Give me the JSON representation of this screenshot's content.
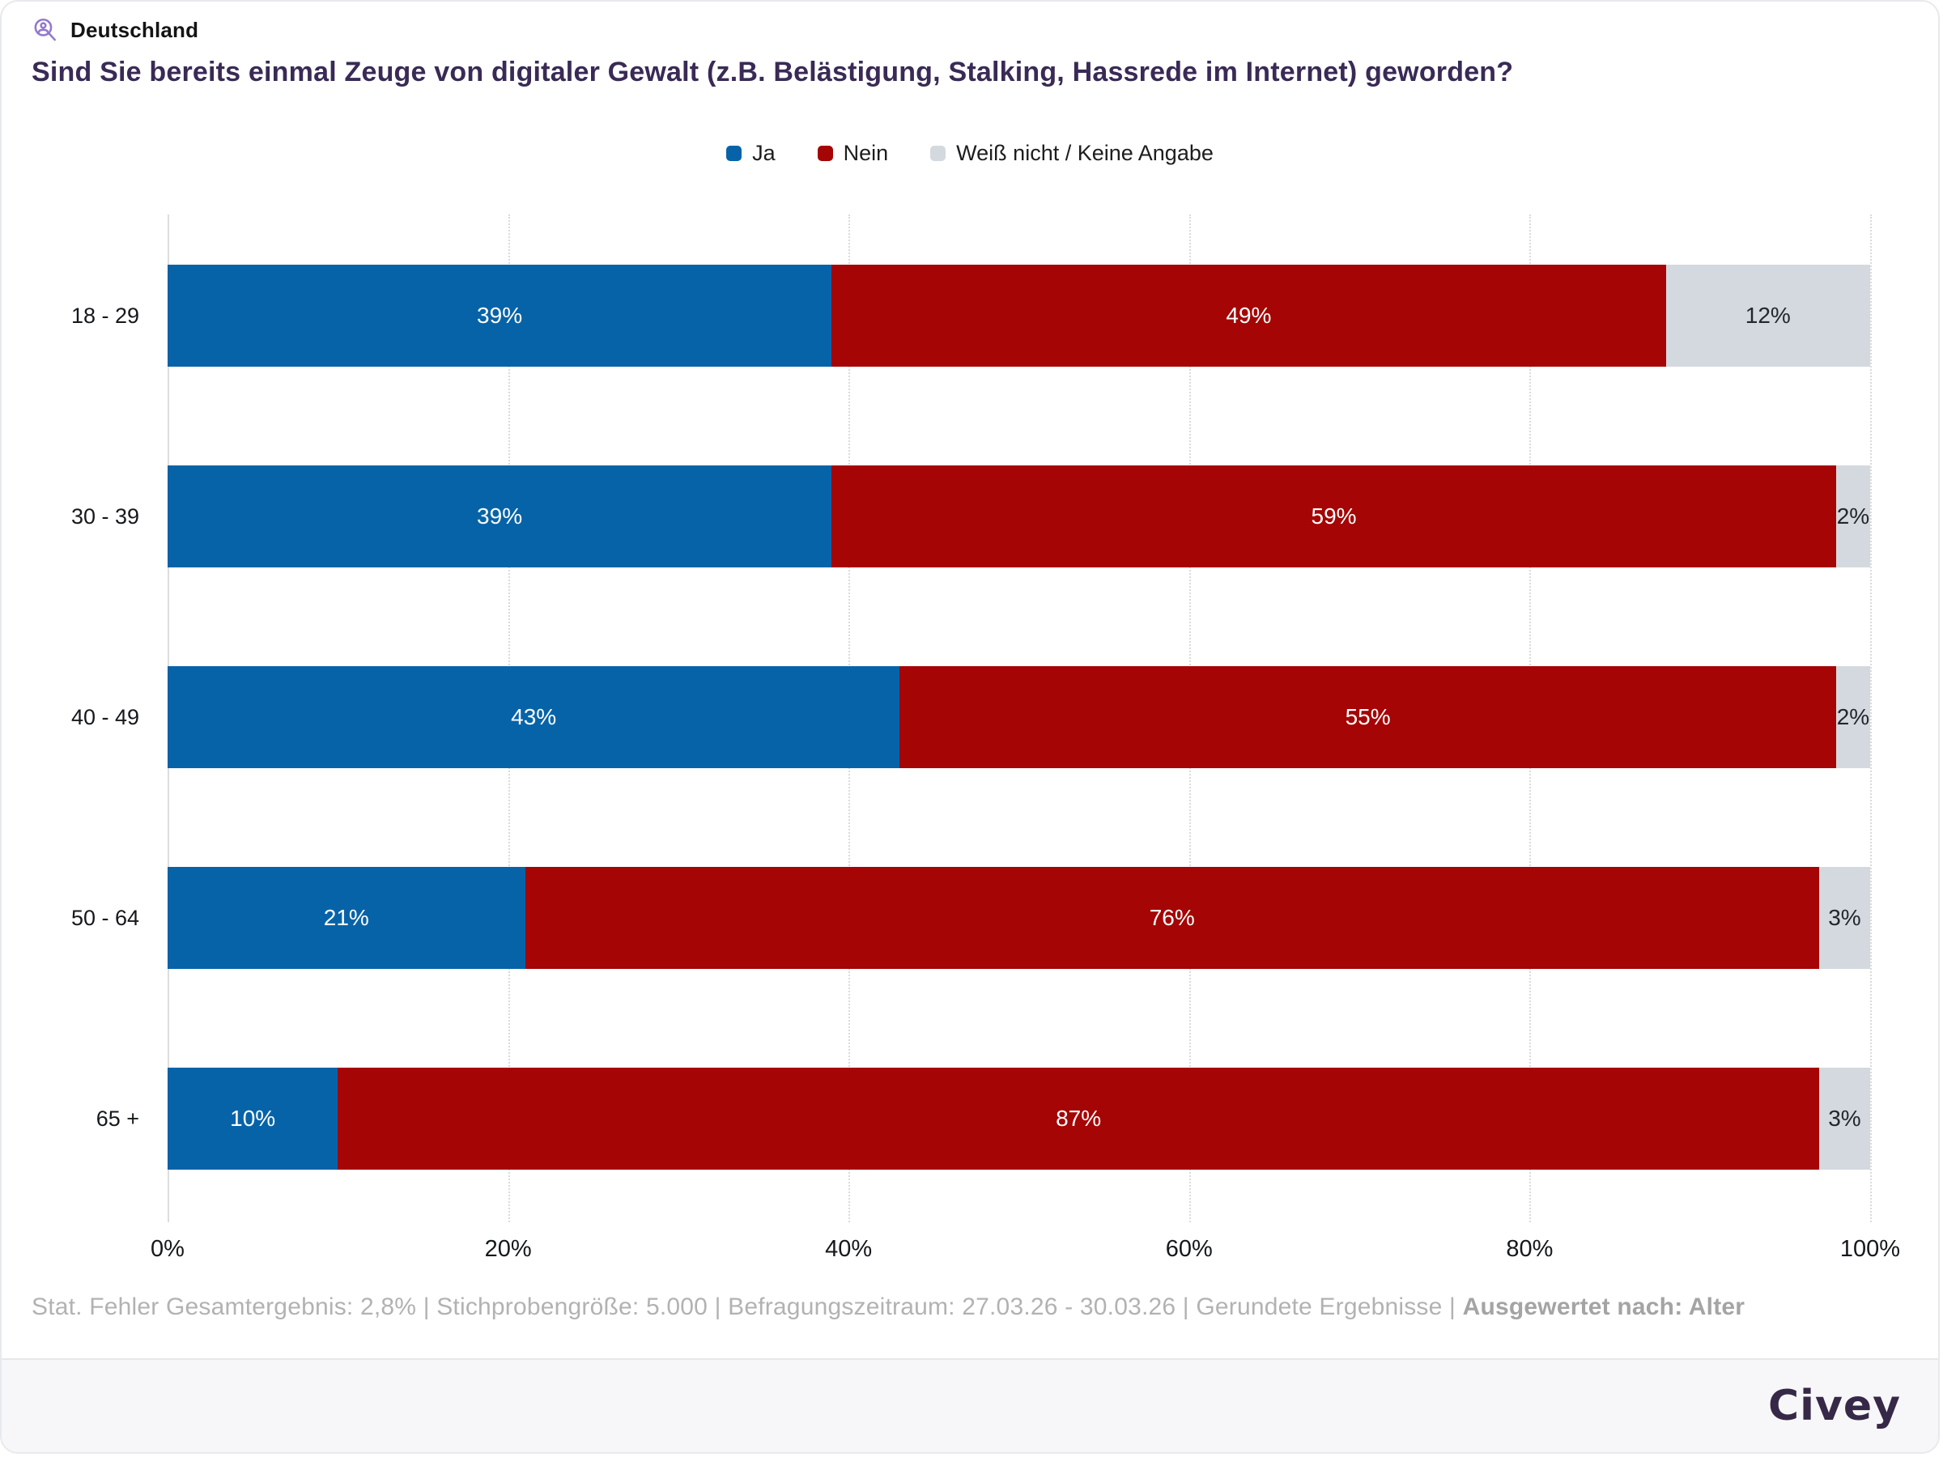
{
  "header": {
    "region": "Deutschland",
    "icon": "person-search-icon",
    "icon_color": "#9478cc"
  },
  "title": "Sind Sie bereits einmal Zeuge von digitaler Gewalt (z.B. Belästigung, Stalking, Hassrede im Internet) geworden?",
  "legend": [
    {
      "label": "Ja",
      "color": "#0763a8"
    },
    {
      "label": "Nein",
      "color": "#a50505"
    },
    {
      "label": "Weiß nicht / Keine Angabe",
      "color": "#d3d9df"
    }
  ],
  "chart_data": {
    "type": "bar",
    "stacked": true,
    "orientation": "horizontal",
    "title": "Sind Sie bereits einmal Zeuge von digitaler Gewalt (z.B. Belästigung, Stalking, Hassrede im Internet) geworden?",
    "categories": [
      "18 - 29",
      "30 - 39",
      "40 - 49",
      "50 - 64",
      "65 +"
    ],
    "series": [
      {
        "name": "Ja",
        "color": "#0763a8",
        "values": [
          39,
          39,
          43,
          21,
          10
        ]
      },
      {
        "name": "Nein",
        "color": "#a50505",
        "values": [
          49,
          59,
          55,
          76,
          87
        ]
      },
      {
        "name": "Weiß nicht / Keine Angabe",
        "color": "#d3d9df",
        "values": [
          12,
          2,
          2,
          3,
          3
        ]
      }
    ],
    "value_suffix": "%",
    "xlim": [
      0,
      100
    ],
    "x_ticks": [
      "0%",
      "20%",
      "40%",
      "60%",
      "80%",
      "100%"
    ],
    "grid": "dotted-vertical",
    "legend_position": "top-center"
  },
  "footer": {
    "meta": "Stat. Fehler Gesamtergebnis: 2,8% | Stichprobengröße: 5.000 | Befragungszeitraum: 27.03.26 - 30.03.26 | Gerundete Ergebnisse | ",
    "meta_bold": "Ausgewertet nach: Alter",
    "brand": "Civey"
  }
}
